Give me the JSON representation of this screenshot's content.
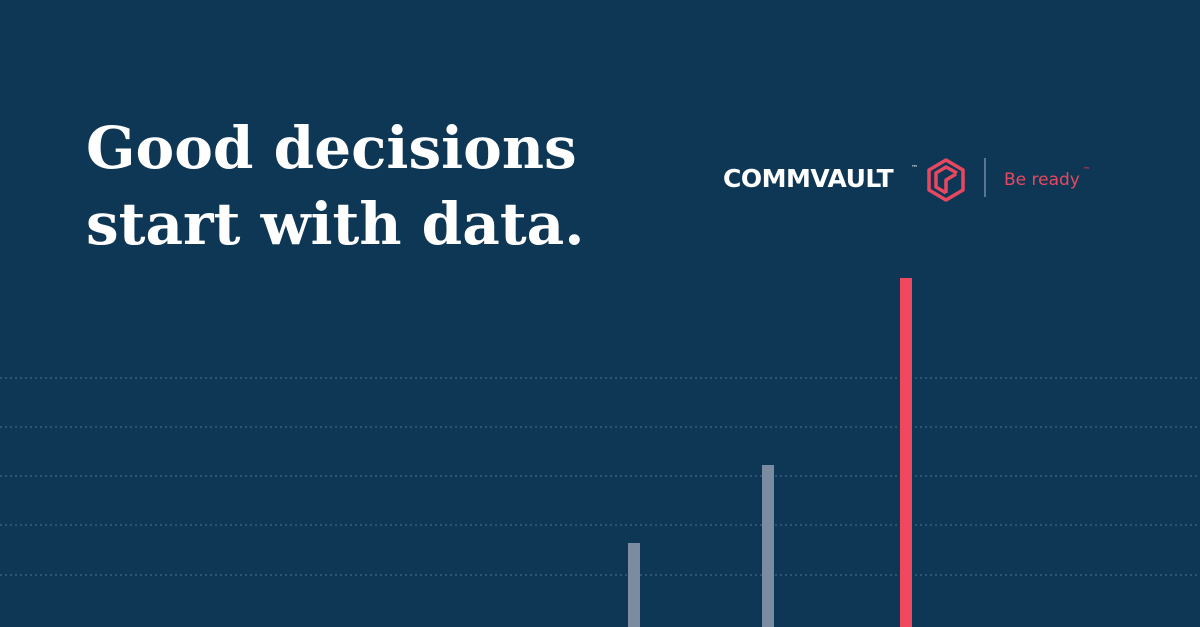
{
  "headline": {
    "lines": [
      "Good decisions",
      "start with data."
    ]
  },
  "logo": {
    "wordmark": "COMMVAULT",
    "trademark": "™",
    "tagline": "Be ready"
  }
}
